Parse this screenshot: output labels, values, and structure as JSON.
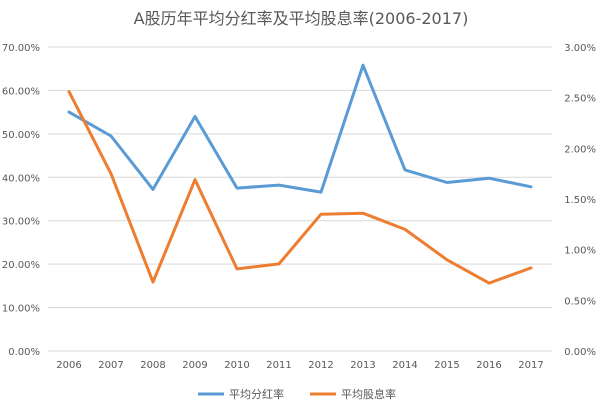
{
  "chart_data": {
    "type": "line",
    "title": "A股历年平均分红率及平均股息率(2006-2017)",
    "categories": [
      "2006",
      "2007",
      "2008",
      "2009",
      "2010",
      "2011",
      "2012",
      "2013",
      "2014",
      "2015",
      "2016",
      "2017"
    ],
    "y_left": {
      "ylim": [
        0,
        70
      ],
      "tick_labels": [
        "0.00%",
        "10.00%",
        "20.00%",
        "30.00%",
        "40.00%",
        "50.00%",
        "60.00%",
        "70.00%"
      ]
    },
    "y_right": {
      "ylim": [
        0,
        3
      ],
      "tick_labels": [
        "0.00%",
        "0.50%",
        "1.00%",
        "1.50%",
        "2.00%",
        "2.50%",
        "3.00%"
      ]
    },
    "series": [
      {
        "name": "平均分红率",
        "axis": "left",
        "color": "#5B9BD5",
        "values": [
          55.0,
          49.5,
          37.2,
          54.0,
          37.5,
          38.2,
          36.6,
          65.8,
          41.7,
          38.8,
          39.8,
          37.8
        ]
      },
      {
        "name": "平均股息率",
        "axis": "right",
        "color": "#ED7D31",
        "values": [
          2.56,
          1.75,
          0.68,
          1.69,
          0.81,
          0.86,
          1.35,
          1.36,
          1.2,
          0.9,
          0.67,
          0.82
        ]
      }
    ],
    "grid": true,
    "legend_position": "bottom"
  }
}
